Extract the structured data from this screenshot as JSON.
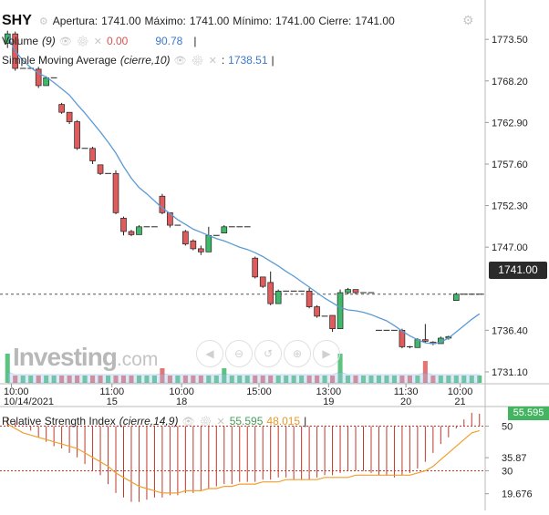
{
  "header": {
    "symbol": "SHY",
    "open_label": "Apertura:",
    "open": "1741.00",
    "high_label": "Máximo:",
    "high": "1741.00",
    "low_label": "Mínimo:",
    "low": "1741.00",
    "close_label": "Cierre:",
    "close": "1741.00"
  },
  "volume_legend": {
    "label": "Volume",
    "param": "(9)",
    "value1": "0.00",
    "value2": "90.78"
  },
  "sma_legend": {
    "label": "Simple Moving Average",
    "param": "(cierre,10)",
    "value": "1738.51"
  },
  "rsi_legend": {
    "label": "Relative Strength Index",
    "param": "(cierre,14,9)",
    "value1": "55.595",
    "value2": "48.015"
  },
  "price_tag": "1741.00",
  "rsi_tag": "55.595",
  "logo": {
    "brand": "Investing",
    "suffix": ".com"
  },
  "nav_icons": [
    "arrow-left-icon",
    "zoom-out-icon",
    "reset-icon",
    "zoom-in-icon",
    "arrow-right-icon"
  ],
  "colors": {
    "up": "#3fb86a",
    "down": "#e05c5c",
    "sma": "#5b9bd5",
    "rsi": "#c0392b",
    "rsi_signal": "#f0a030",
    "price_line": "#444444"
  },
  "chart_data": [
    {
      "type": "candlestick",
      "y_axis_ticks": [
        1773.5,
        1768.2,
        1762.9,
        1757.6,
        1752.3,
        1747.0,
        1736.4,
        1731.1
      ],
      "ylim": [
        1729.7,
        1774.8
      ],
      "x_tick_labels": [
        {
          "time": "10:00",
          "date": "10/14/2021"
        },
        {
          "time": "11:00",
          "date": "15"
        },
        {
          "time": "10:00",
          "date": "18"
        },
        {
          "time": "15:00",
          "date": ""
        },
        {
          "time": "13:00",
          "date": "19"
        },
        {
          "time": "11:30",
          "date": "20"
        },
        {
          "time": "10:00",
          "date": "21"
        }
      ],
      "candles": [
        {
          "o": 1773.0,
          "h": 1774.6,
          "l": 1772.4,
          "c": 1774.2
        },
        {
          "o": 1774.2,
          "h": 1774.5,
          "l": 1769.5,
          "c": 1769.8
        },
        {
          "o": 1769.8,
          "h": 1769.8,
          "l": 1769.8,
          "c": 1769.8
        },
        {
          "o": 1769.8,
          "h": 1769.8,
          "l": 1769.8,
          "c": 1769.8
        },
        {
          "o": 1769.7,
          "h": 1770.0,
          "l": 1767.3,
          "c": 1767.6
        },
        {
          "o": 1767.6,
          "h": 1768.8,
          "l": 1767.6,
          "c": 1768.6
        },
        {
          "o": 1768.6,
          "h": 1768.6,
          "l": 1768.6,
          "c": 1768.6
        },
        {
          "o": 1765.2,
          "h": 1765.4,
          "l": 1764.0,
          "c": 1764.2
        },
        {
          "o": 1764.2,
          "h": 1764.2,
          "l": 1762.7,
          "c": 1763.0
        },
        {
          "o": 1763.0,
          "h": 1763.2,
          "l": 1759.4,
          "c": 1759.6
        },
        {
          "o": 1759.6,
          "h": 1759.6,
          "l": 1759.6,
          "c": 1759.6
        },
        {
          "o": 1759.6,
          "h": 1759.8,
          "l": 1757.6,
          "c": 1758.0
        },
        {
          "o": 1757.5,
          "h": 1757.5,
          "l": 1756.2,
          "c": 1756.4
        },
        {
          "o": 1756.4,
          "h": 1756.4,
          "l": 1756.4,
          "c": 1756.4
        },
        {
          "o": 1756.4,
          "h": 1756.8,
          "l": 1751.2,
          "c": 1751.4
        },
        {
          "o": 1750.7,
          "h": 1750.9,
          "l": 1748.5,
          "c": 1749.0
        },
        {
          "o": 1749.0,
          "h": 1749.2,
          "l": 1748.4,
          "c": 1748.6
        },
        {
          "o": 1748.6,
          "h": 1749.8,
          "l": 1748.6,
          "c": 1749.6
        },
        {
          "o": 1749.6,
          "h": 1749.6,
          "l": 1749.6,
          "c": 1749.6
        },
        {
          "o": 1749.6,
          "h": 1749.6,
          "l": 1749.6,
          "c": 1749.6
        },
        {
          "o": 1753.5,
          "h": 1753.8,
          "l": 1751.2,
          "c": 1751.4
        },
        {
          "o": 1751.4,
          "h": 1751.4,
          "l": 1749.5,
          "c": 1749.8
        },
        {
          "o": 1749.8,
          "h": 1749.8,
          "l": 1749.8,
          "c": 1749.8
        },
        {
          "o": 1749.0,
          "h": 1749.2,
          "l": 1747.2,
          "c": 1747.4
        },
        {
          "o": 1747.8,
          "h": 1748.0,
          "l": 1746.6,
          "c": 1746.8
        },
        {
          "o": 1746.8,
          "h": 1747.2,
          "l": 1746.0,
          "c": 1746.4
        },
        {
          "o": 1746.4,
          "h": 1749.6,
          "l": 1746.4,
          "c": 1748.5
        },
        {
          "o": 1748.5,
          "h": 1748.5,
          "l": 1748.5,
          "c": 1748.5
        },
        {
          "o": 1748.8,
          "h": 1749.8,
          "l": 1748.8,
          "c": 1749.6
        },
        {
          "o": 1749.6,
          "h": 1749.6,
          "l": 1749.6,
          "c": 1749.6
        },
        {
          "o": 1749.6,
          "h": 1749.6,
          "l": 1749.6,
          "c": 1749.6
        },
        {
          "o": 1749.6,
          "h": 1749.6,
          "l": 1749.6,
          "c": 1749.6
        },
        {
          "o": 1745.6,
          "h": 1745.8,
          "l": 1743.0,
          "c": 1743.2
        },
        {
          "o": 1743.2,
          "h": 1743.2,
          "l": 1741.8,
          "c": 1742.0
        },
        {
          "o": 1742.5,
          "h": 1743.9,
          "l": 1739.6,
          "c": 1739.8
        },
        {
          "o": 1739.8,
          "h": 1741.6,
          "l": 1739.8,
          "c": 1741.4
        },
        {
          "o": 1741.4,
          "h": 1741.4,
          "l": 1741.4,
          "c": 1741.4
        },
        {
          "o": 1741.4,
          "h": 1741.4,
          "l": 1741.4,
          "c": 1741.4
        },
        {
          "o": 1741.4,
          "h": 1741.4,
          "l": 1741.4,
          "c": 1741.4
        },
        {
          "o": 1741.4,
          "h": 1741.8,
          "l": 1739.2,
          "c": 1739.4
        },
        {
          "o": 1739.4,
          "h": 1739.6,
          "l": 1738.0,
          "c": 1738.2
        },
        {
          "o": 1738.2,
          "h": 1738.2,
          "l": 1738.2,
          "c": 1738.2
        },
        {
          "o": 1738.3,
          "h": 1738.3,
          "l": 1736.2,
          "c": 1736.6
        },
        {
          "o": 1736.6,
          "h": 1741.6,
          "l": 1736.6,
          "c": 1741.2
        },
        {
          "o": 1741.2,
          "h": 1741.8,
          "l": 1741.0,
          "c": 1741.6
        },
        {
          "o": 1741.6,
          "h": 1741.6,
          "l": 1741.0,
          "c": 1741.2
        },
        {
          "o": 1741.2,
          "h": 1741.2,
          "l": 1741.2,
          "c": 1741.2
        },
        {
          "o": 1741.2,
          "h": 1741.2,
          "l": 1741.2,
          "c": 1741.2
        },
        {
          "o": 1736.4,
          "h": 1736.4,
          "l": 1736.4,
          "c": 1736.4
        },
        {
          "o": 1736.4,
          "h": 1736.4,
          "l": 1736.4,
          "c": 1736.4
        },
        {
          "o": 1736.4,
          "h": 1736.4,
          "l": 1736.4,
          "c": 1736.4
        },
        {
          "o": 1736.4,
          "h": 1736.6,
          "l": 1734.1,
          "c": 1734.3
        },
        {
          "o": 1734.3,
          "h": 1734.4,
          "l": 1734.1,
          "c": 1734.2
        },
        {
          "o": 1734.2,
          "h": 1735.4,
          "l": 1734.2,
          "c": 1735.2
        },
        {
          "o": 1735.2,
          "h": 1737.2,
          "l": 1734.8,
          "c": 1735.0
        },
        {
          "o": 1734.9,
          "h": 1735.0,
          "l": 1734.5,
          "c": 1734.7
        },
        {
          "o": 1734.7,
          "h": 1735.6,
          "l": 1734.7,
          "c": 1735.4
        },
        {
          "o": 1735.4,
          "h": 1735.7,
          "l": 1735.2,
          "c": 1735.6
        },
        {
          "o": 1740.2,
          "h": 1741.2,
          "l": 1740.2,
          "c": 1741.0
        },
        {
          "o": 1741.0,
          "h": 1741.0,
          "l": 1741.0,
          "c": 1741.0
        },
        {
          "o": 1741.0,
          "h": 1741.0,
          "l": 1741.0,
          "c": 1741.0
        },
        {
          "o": 1741.0,
          "h": 1741.0,
          "l": 1741.0,
          "c": 1741.0
        }
      ],
      "sma": [
        1774.0,
        1772.0,
        1770.8,
        1769.9,
        1769.2,
        1768.7,
        1768.0,
        1767.2,
        1766.4,
        1765.2,
        1764.1,
        1762.9,
        1761.7,
        1760.4,
        1759.0,
        1757.3,
        1755.8,
        1754.6,
        1753.8,
        1752.9,
        1752.0,
        1751.3,
        1750.5,
        1749.9,
        1749.3,
        1748.9,
        1748.5,
        1748.1,
        1747.8,
        1747.4,
        1747.0,
        1746.7,
        1746.3,
        1745.8,
        1745.2,
        1744.6,
        1743.9,
        1743.3,
        1742.6,
        1741.9,
        1741.2,
        1740.5,
        1739.9,
        1739.3,
        1739.0,
        1738.9,
        1738.7,
        1738.4,
        1738.0,
        1737.6,
        1737.0,
        1736.3,
        1735.7,
        1735.2,
        1734.8,
        1734.7,
        1734.9,
        1735.4,
        1736.2,
        1737.0,
        1737.8,
        1738.5
      ],
      "volume": [
        4,
        1,
        1,
        1,
        1,
        1,
        1,
        1,
        1,
        1,
        1,
        1,
        1,
        1,
        1,
        1,
        1,
        1,
        1,
        1,
        2,
        1,
        1,
        1,
        1,
        1,
        1,
        1,
        2,
        1,
        1,
        1,
        1,
        1,
        1,
        1,
        1,
        1,
        1,
        1,
        1,
        1,
        1,
        4,
        1,
        1,
        1,
        1,
        1,
        1,
        1,
        1,
        1,
        1,
        3,
        1,
        1,
        1,
        1,
        1,
        1,
        1
      ]
    },
    {
      "type": "bar",
      "title": "Relative Strength Index",
      "y_axis_ticks": [
        50,
        35.87,
        30,
        19.676
      ],
      "ylim": [
        13,
        58
      ],
      "reference_levels": [
        30,
        50
      ],
      "rsi": [
        54,
        52,
        50,
        48,
        45,
        43,
        41,
        40,
        38,
        36,
        33,
        30,
        28,
        24,
        20,
        18,
        16,
        16,
        17,
        18,
        18,
        19,
        19,
        20,
        20,
        21,
        22,
        23,
        24,
        24,
        25,
        25,
        25,
        26,
        26,
        27,
        27,
        26,
        26,
        26,
        27,
        28,
        28,
        29,
        30,
        30,
        30,
        29,
        28,
        28,
        27,
        28,
        29,
        31,
        34,
        38,
        42,
        45,
        49,
        53,
        56,
        55.6
      ],
      "signal": [
        51,
        49,
        47,
        46,
        45,
        44,
        43,
        42,
        41,
        40,
        38,
        36,
        34,
        32,
        29,
        27,
        25,
        23,
        22,
        21,
        20,
        20,
        20,
        21,
        21,
        21,
        22,
        22,
        23,
        23,
        24,
        24,
        24,
        25,
        25,
        25,
        26,
        26,
        26,
        26,
        26,
        27,
        27,
        27,
        27,
        28,
        28,
        28,
        28,
        28,
        28,
        28,
        28,
        29,
        30,
        32,
        35,
        38,
        41,
        44,
        47,
        48.0
      ]
    }
  ]
}
